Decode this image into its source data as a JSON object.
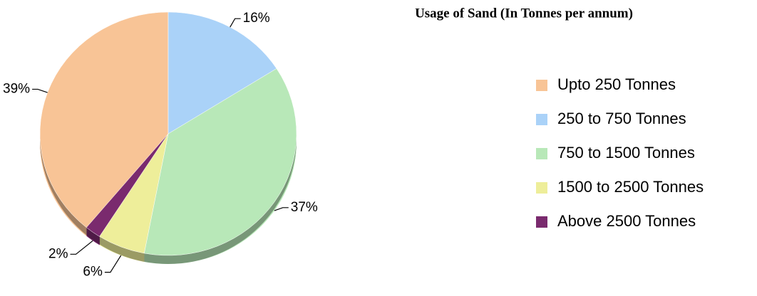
{
  "chart_data": {
    "type": "pie",
    "title": "Usage of Sand  (In Tonnes per annum)",
    "categories": [
      "Upto 250 Tonnes",
      "250 to 750 Tonnes",
      "750 to 1500 Tonnes",
      "1500 to 2500 Tonnes",
      "Above 2500 Tonnes"
    ],
    "values": [
      39,
      16,
      37,
      6,
      2
    ],
    "value_labels": [
      "39%",
      "16%",
      "37%",
      "6%",
      "2%"
    ],
    "colors": [
      "#f8c496",
      "#aad2f8",
      "#b8e8b8",
      "#eeee9a",
      "#7a2a6e"
    ],
    "legend": "right"
  }
}
